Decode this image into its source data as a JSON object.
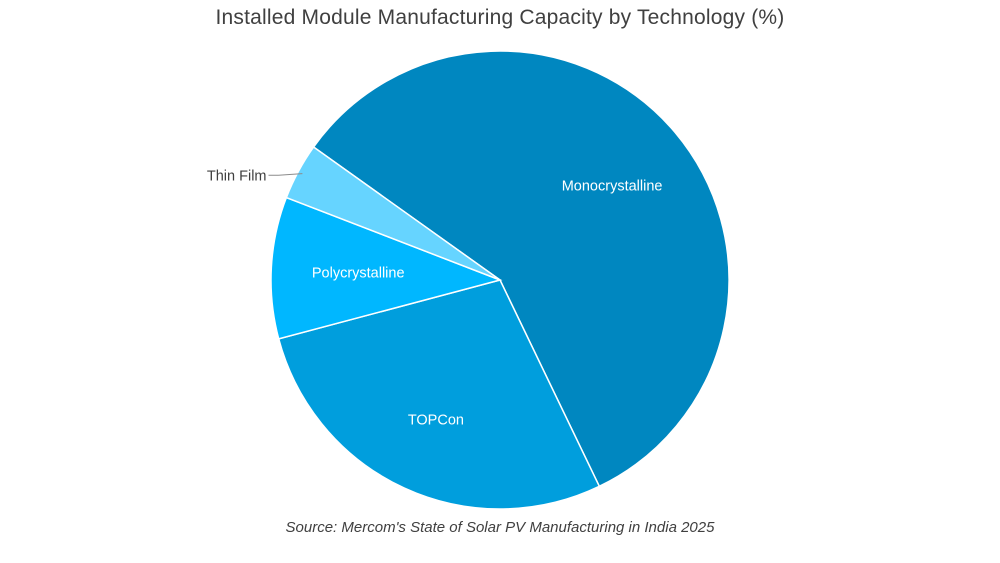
{
  "chart_data": {
    "type": "pie",
    "title": "Installed Module Manufacturing Capacity by Technology (%)",
    "slices": [
      {
        "label": "Monocrystalline",
        "value": 58,
        "color": "#0087C0"
      },
      {
        "label": "TOPCon",
        "value": 28,
        "color": "#009EDD"
      },
      {
        "label": "Polycrystalline",
        "value": 10,
        "color": "#00B7FF"
      },
      {
        "label": "Thin Film",
        "value": 4,
        "color": "#66D4FF"
      }
    ],
    "start_angle_deg_clockwise_from_top": -54.5,
    "legend": "none"
  },
  "source": "Source: Mercom's  State of Solar PV Manufacturing in India 2025"
}
